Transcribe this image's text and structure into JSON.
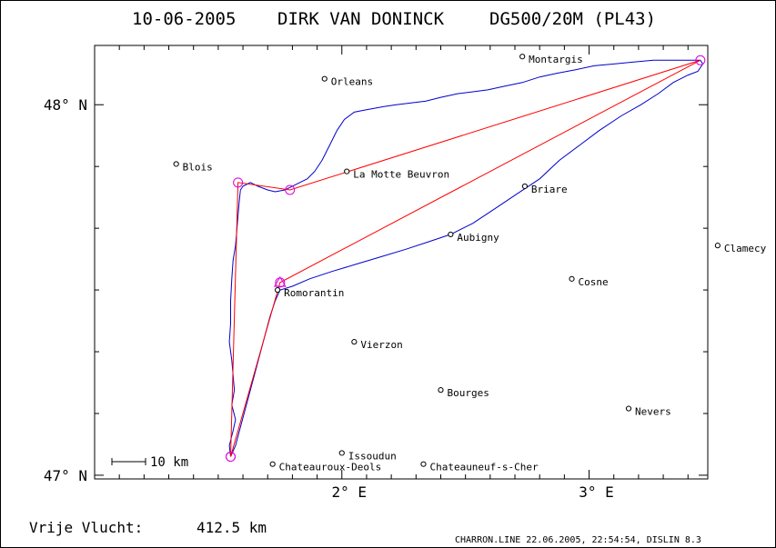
{
  "header": {
    "date": "10-06-2005",
    "pilot": "DIRK VAN DONINCK",
    "glider": "DG500/20M (PL43)"
  },
  "axes": {
    "lat_labels": [
      {
        "label": "48° N",
        "lat": 48.0
      },
      {
        "label": "47° N",
        "lat": 47.0
      }
    ],
    "lon_labels": [
      {
        "label": "2° E",
        "lon": 2.0
      },
      {
        "label": "3° E",
        "lon": 3.0
      }
    ],
    "lon_range": [
      1.0,
      3.48
    ],
    "lat_range": [
      46.99,
      48.16
    ]
  },
  "towns": [
    {
      "name": "Montargis",
      "lon": 2.73,
      "lat": 48.13
    },
    {
      "name": "Orleans",
      "lon": 1.93,
      "lat": 48.07
    },
    {
      "name": "Blois",
      "lon": 1.33,
      "lat": 47.84
    },
    {
      "name": "La Motte Beuvron",
      "lon": 2.02,
      "lat": 47.82
    },
    {
      "name": "Briare",
      "lon": 2.74,
      "lat": 47.78
    },
    {
      "name": "Aubigny",
      "lon": 2.44,
      "lat": 47.65
    },
    {
      "name": "Clamecy",
      "lon": 3.52,
      "lat": 47.62
    },
    {
      "name": "Cosne",
      "lon": 2.93,
      "lat": 47.53
    },
    {
      "name": "Romorantin",
      "lon": 1.74,
      "lat": 47.5
    },
    {
      "name": "Vierzon",
      "lon": 2.05,
      "lat": 47.36
    },
    {
      "name": "Bourges",
      "lon": 2.4,
      "lat": 47.23
    },
    {
      "name": "Nevers",
      "lon": 3.16,
      "lat": 47.18
    },
    {
      "name": "Issoudun",
      "lon": 2.0,
      "lat": 47.06
    },
    {
      "name": "Chateauroux-Deols",
      "lon": 1.72,
      "lat": 47.03
    },
    {
      "name": "Chateauneuf-s-Cher",
      "lon": 2.33,
      "lat": 47.03
    }
  ],
  "task": {
    "turnpoints": [
      {
        "lon": 1.55,
        "lat": 47.05,
        "shape": "circle"
      },
      {
        "lon": 1.75,
        "lat": 47.52,
        "shape": "triangle"
      },
      {
        "lon": 3.45,
        "lat": 48.12,
        "shape": "circle"
      },
      {
        "lon": 1.75,
        "lat": 47.52,
        "shape": "circle"
      },
      {
        "lon": 1.79,
        "lat": 47.77,
        "shape": "circle"
      },
      {
        "lon": 1.58,
        "lat": 47.79,
        "shape": "circle"
      },
      {
        "lon": 1.55,
        "lat": 47.05,
        "shape": "circle"
      }
    ],
    "legs": [
      [
        1.55,
        47.05
      ],
      [
        1.75,
        47.52
      ],
      [
        3.45,
        48.12
      ],
      [
        1.79,
        47.77
      ],
      [
        1.58,
        47.79
      ],
      [
        1.55,
        47.05
      ]
    ]
  },
  "track": [
    [
      1.55,
      47.05
    ],
    [
      1.545,
      47.08
    ],
    [
      1.56,
      47.12
    ],
    [
      1.57,
      47.15
    ],
    [
      1.555,
      47.19
    ],
    [
      1.565,
      47.23
    ],
    [
      1.56,
      47.27
    ],
    [
      1.555,
      47.31
    ],
    [
      1.545,
      47.36
    ],
    [
      1.55,
      47.41
    ],
    [
      1.55,
      47.47
    ],
    [
      1.555,
      47.53
    ],
    [
      1.56,
      47.58
    ],
    [
      1.57,
      47.62
    ],
    [
      1.575,
      47.66
    ],
    [
      1.58,
      47.7
    ],
    [
      1.585,
      47.74
    ],
    [
      1.59,
      47.77
    ],
    [
      1.6,
      47.78
    ],
    [
      1.63,
      47.79
    ],
    [
      1.66,
      47.78
    ],
    [
      1.7,
      47.77
    ],
    [
      1.73,
      47.765
    ],
    [
      1.77,
      47.77
    ],
    [
      1.8,
      47.78
    ],
    [
      1.83,
      47.79
    ],
    [
      1.86,
      47.8
    ],
    [
      1.89,
      47.82
    ],
    [
      1.92,
      47.85
    ],
    [
      1.95,
      47.89
    ],
    [
      1.98,
      47.93
    ],
    [
      2.01,
      47.96
    ],
    [
      2.05,
      47.98
    ],
    [
      2.09,
      47.985
    ],
    [
      2.13,
      47.99
    ],
    [
      2.17,
      47.995
    ],
    [
      2.22,
      48.0
    ],
    [
      2.28,
      48.005
    ],
    [
      2.34,
      48.01
    ],
    [
      2.4,
      48.02
    ],
    [
      2.47,
      48.03
    ],
    [
      2.53,
      48.035
    ],
    [
      2.59,
      48.04
    ],
    [
      2.66,
      48.05
    ],
    [
      2.73,
      48.06
    ],
    [
      2.8,
      48.075
    ],
    [
      2.87,
      48.085
    ],
    [
      2.95,
      48.095
    ],
    [
      3.02,
      48.105
    ],
    [
      3.1,
      48.11
    ],
    [
      3.18,
      48.115
    ],
    [
      3.26,
      48.12
    ],
    [
      3.34,
      48.12
    ],
    [
      3.4,
      48.12
    ],
    [
      3.45,
      48.12
    ],
    [
      3.46,
      48.11
    ],
    [
      3.45,
      48.1
    ],
    [
      3.44,
      48.09
    ],
    [
      3.4,
      48.08
    ],
    [
      3.34,
      48.06
    ],
    [
      3.28,
      48.03
    ],
    [
      3.21,
      48.0
    ],
    [
      3.13,
      47.97
    ],
    [
      3.04,
      47.93
    ],
    [
      2.96,
      47.89
    ],
    [
      2.88,
      47.85
    ],
    [
      2.8,
      47.8
    ],
    [
      2.71,
      47.76
    ],
    [
      2.62,
      47.72
    ],
    [
      2.53,
      47.68
    ],
    [
      2.44,
      47.65
    ],
    [
      2.35,
      47.63
    ],
    [
      2.26,
      47.61
    ],
    [
      2.16,
      47.59
    ],
    [
      2.06,
      47.57
    ],
    [
      1.96,
      47.55
    ],
    [
      1.87,
      47.53
    ],
    [
      1.8,
      47.51
    ],
    [
      1.75,
      47.5
    ],
    [
      1.73,
      47.47
    ],
    [
      1.71,
      47.43
    ],
    [
      1.69,
      47.38
    ],
    [
      1.67,
      47.33
    ],
    [
      1.65,
      47.28
    ],
    [
      1.63,
      47.23
    ],
    [
      1.61,
      47.18
    ],
    [
      1.59,
      47.13
    ],
    [
      1.57,
      47.08
    ],
    [
      1.55,
      47.05
    ]
  ],
  "scale_bar": {
    "label": "10 km"
  },
  "footer": {
    "distance_label": "Vrije Vlucht:",
    "distance_value": "412.5 km",
    "credits": "CHARRON.LINE 22.06.2005, 22:54:54, DISLIN 8.3"
  },
  "colors": {
    "track": "#0000cc",
    "task": "#ff0000",
    "turnpoint": "#dd00dd",
    "frame": "#000000"
  }
}
